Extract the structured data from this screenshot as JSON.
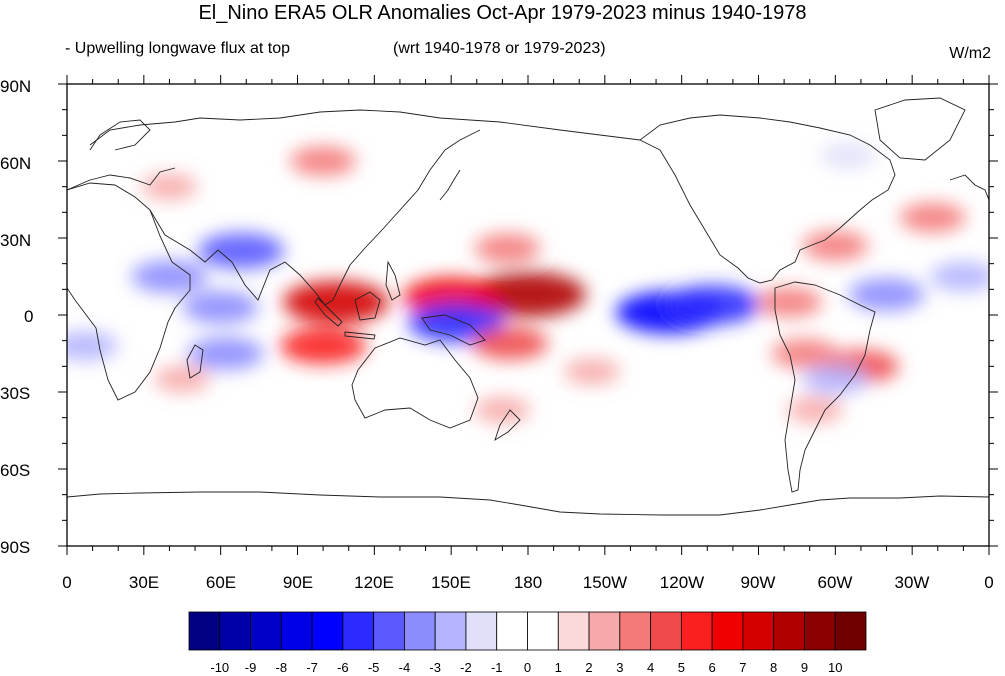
{
  "title": "El_Nino ERA5 OLR Anomalies Oct-Apr 1979-2023 minus 1940-1978",
  "subtitle_left": "- Upwelling longwave flux at top",
  "subtitle_mid": "(wrt 1940-1978 or 1979-2023)",
  "units": "W/m2",
  "map": {
    "projection": "cylindrical-equidistant",
    "lon_range": [
      0,
      360
    ],
    "lat_range": [
      -90,
      90
    ],
    "lat_ticks": [
      "90N",
      "60N",
      "30N",
      "0",
      "30S",
      "60S",
      "90S"
    ],
    "lon_ticks": [
      "0",
      "30E",
      "60E",
      "90E",
      "120E",
      "150E",
      "180",
      "150W",
      "120W",
      "90W",
      "60W",
      "30W",
      "0"
    ]
  },
  "colorbar": {
    "labels": [
      "-10",
      "-9",
      "-8",
      "-7",
      "-6",
      "-5",
      "-4",
      "-3",
      "-2",
      "-1",
      "0",
      "1",
      "2",
      "3",
      "4",
      "5",
      "6",
      "7",
      "8",
      "9",
      "10"
    ],
    "colors": [
      "#000080",
      "#0000a8",
      "#0000c8",
      "#0000e6",
      "#0000ff",
      "#2b2bff",
      "#5a5aff",
      "#8c8cff",
      "#b4b4ff",
      "#e0e0fa",
      "#ffffff",
      "#ffffff",
      "#fcd9d9",
      "#f7a8a8",
      "#f47a7a",
      "#f04a4a",
      "#fa2020",
      "#f00000",
      "#d40000",
      "#b00000",
      "#8c0000",
      "#700000"
    ]
  },
  "anomalies": [
    {
      "lon": 180,
      "lat": 8,
      "value": 8
    },
    {
      "lon": 105,
      "lat": 5,
      "value": 7
    },
    {
      "lon": 150,
      "lat": 7,
      "value": 6
    },
    {
      "lon": 235,
      "lat": 1,
      "value": -7
    },
    {
      "lon": 252,
      "lat": 4,
      "value": -6
    },
    {
      "lon": 68,
      "lat": 25,
      "value": -5
    },
    {
      "lon": 152,
      "lat": -3,
      "value": -6
    },
    {
      "lon": 40,
      "lat": 15,
      "value": -4
    },
    {
      "lon": 60,
      "lat": 3,
      "value": -4
    },
    {
      "lon": 320,
      "lat": 8,
      "value": -4
    },
    {
      "lon": 62,
      "lat": -15,
      "value": -4
    },
    {
      "lon": 100,
      "lat": -12,
      "value": 5
    },
    {
      "lon": 173,
      "lat": -11,
      "value": 4
    },
    {
      "lon": 310,
      "lat": -20,
      "value": 4
    },
    {
      "lon": 288,
      "lat": -15,
      "value": 3
    },
    {
      "lon": 282,
      "lat": 5,
      "value": 3
    },
    {
      "lon": 172,
      "lat": 26,
      "value": 3
    },
    {
      "lon": 100,
      "lat": 60,
      "value": 3
    },
    {
      "lon": 40,
      "lat": 50,
      "value": 2
    },
    {
      "lon": 338,
      "lat": 38,
      "value": 3
    },
    {
      "lon": 300,
      "lat": 27,
      "value": 3
    },
    {
      "lon": 170,
      "lat": -37,
      "value": 2
    },
    {
      "lon": 292,
      "lat": -37,
      "value": 2
    },
    {
      "lon": 300,
      "lat": -25,
      "value": -3
    },
    {
      "lon": 350,
      "lat": 15,
      "value": -3
    },
    {
      "lon": 305,
      "lat": 62,
      "value": -2
    },
    {
      "lon": 7,
      "lat": -12,
      "value": -3
    },
    {
      "lon": 45,
      "lat": -25,
      "value": 2
    },
    {
      "lon": 205,
      "lat": -22,
      "value": 2
    }
  ]
}
